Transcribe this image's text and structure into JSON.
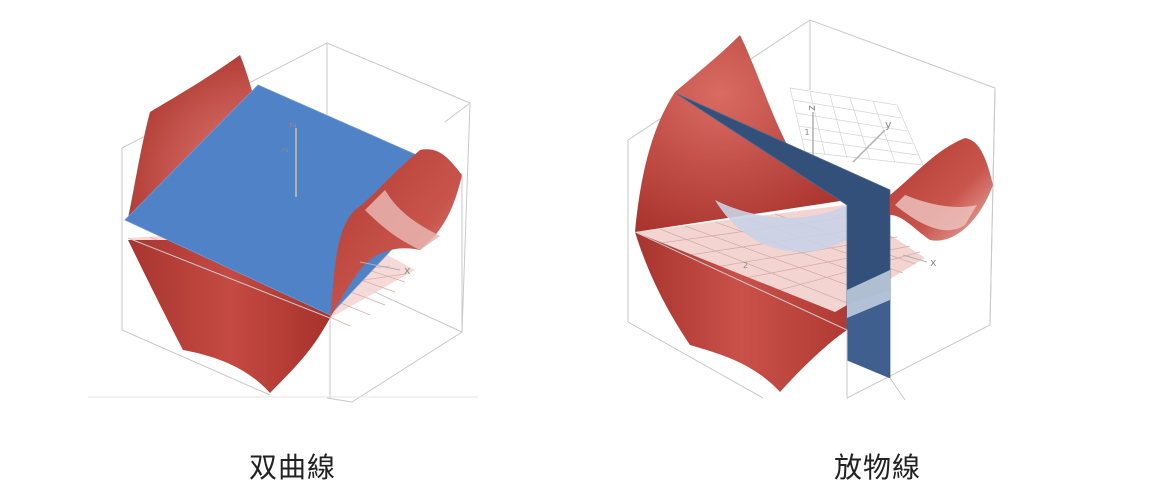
{
  "figures": [
    {
      "id": "hyperbola",
      "caption": "双曲線",
      "axis_labels": {
        "x": "x",
        "y": "y",
        "z": "z"
      },
      "tick_labels": [
        "2"
      ],
      "colors": {
        "surface": "#c0433c",
        "surface_light": "#f2c9c6",
        "plane": "#4f82c6",
        "frame": "#c9c9c9",
        "axis": "#9a9a9a"
      }
    },
    {
      "id": "parabola",
      "caption": "放物線",
      "axis_labels": {
        "x": "x",
        "y": "y",
        "z": "z"
      },
      "tick_labels": [
        "1",
        "2"
      ],
      "colors": {
        "surface": "#c0433c",
        "surface_light": "#f2c9c6",
        "plane": "#33507a",
        "frame": "#c9c9c9",
        "axis": "#9a9a9a"
      }
    }
  ]
}
